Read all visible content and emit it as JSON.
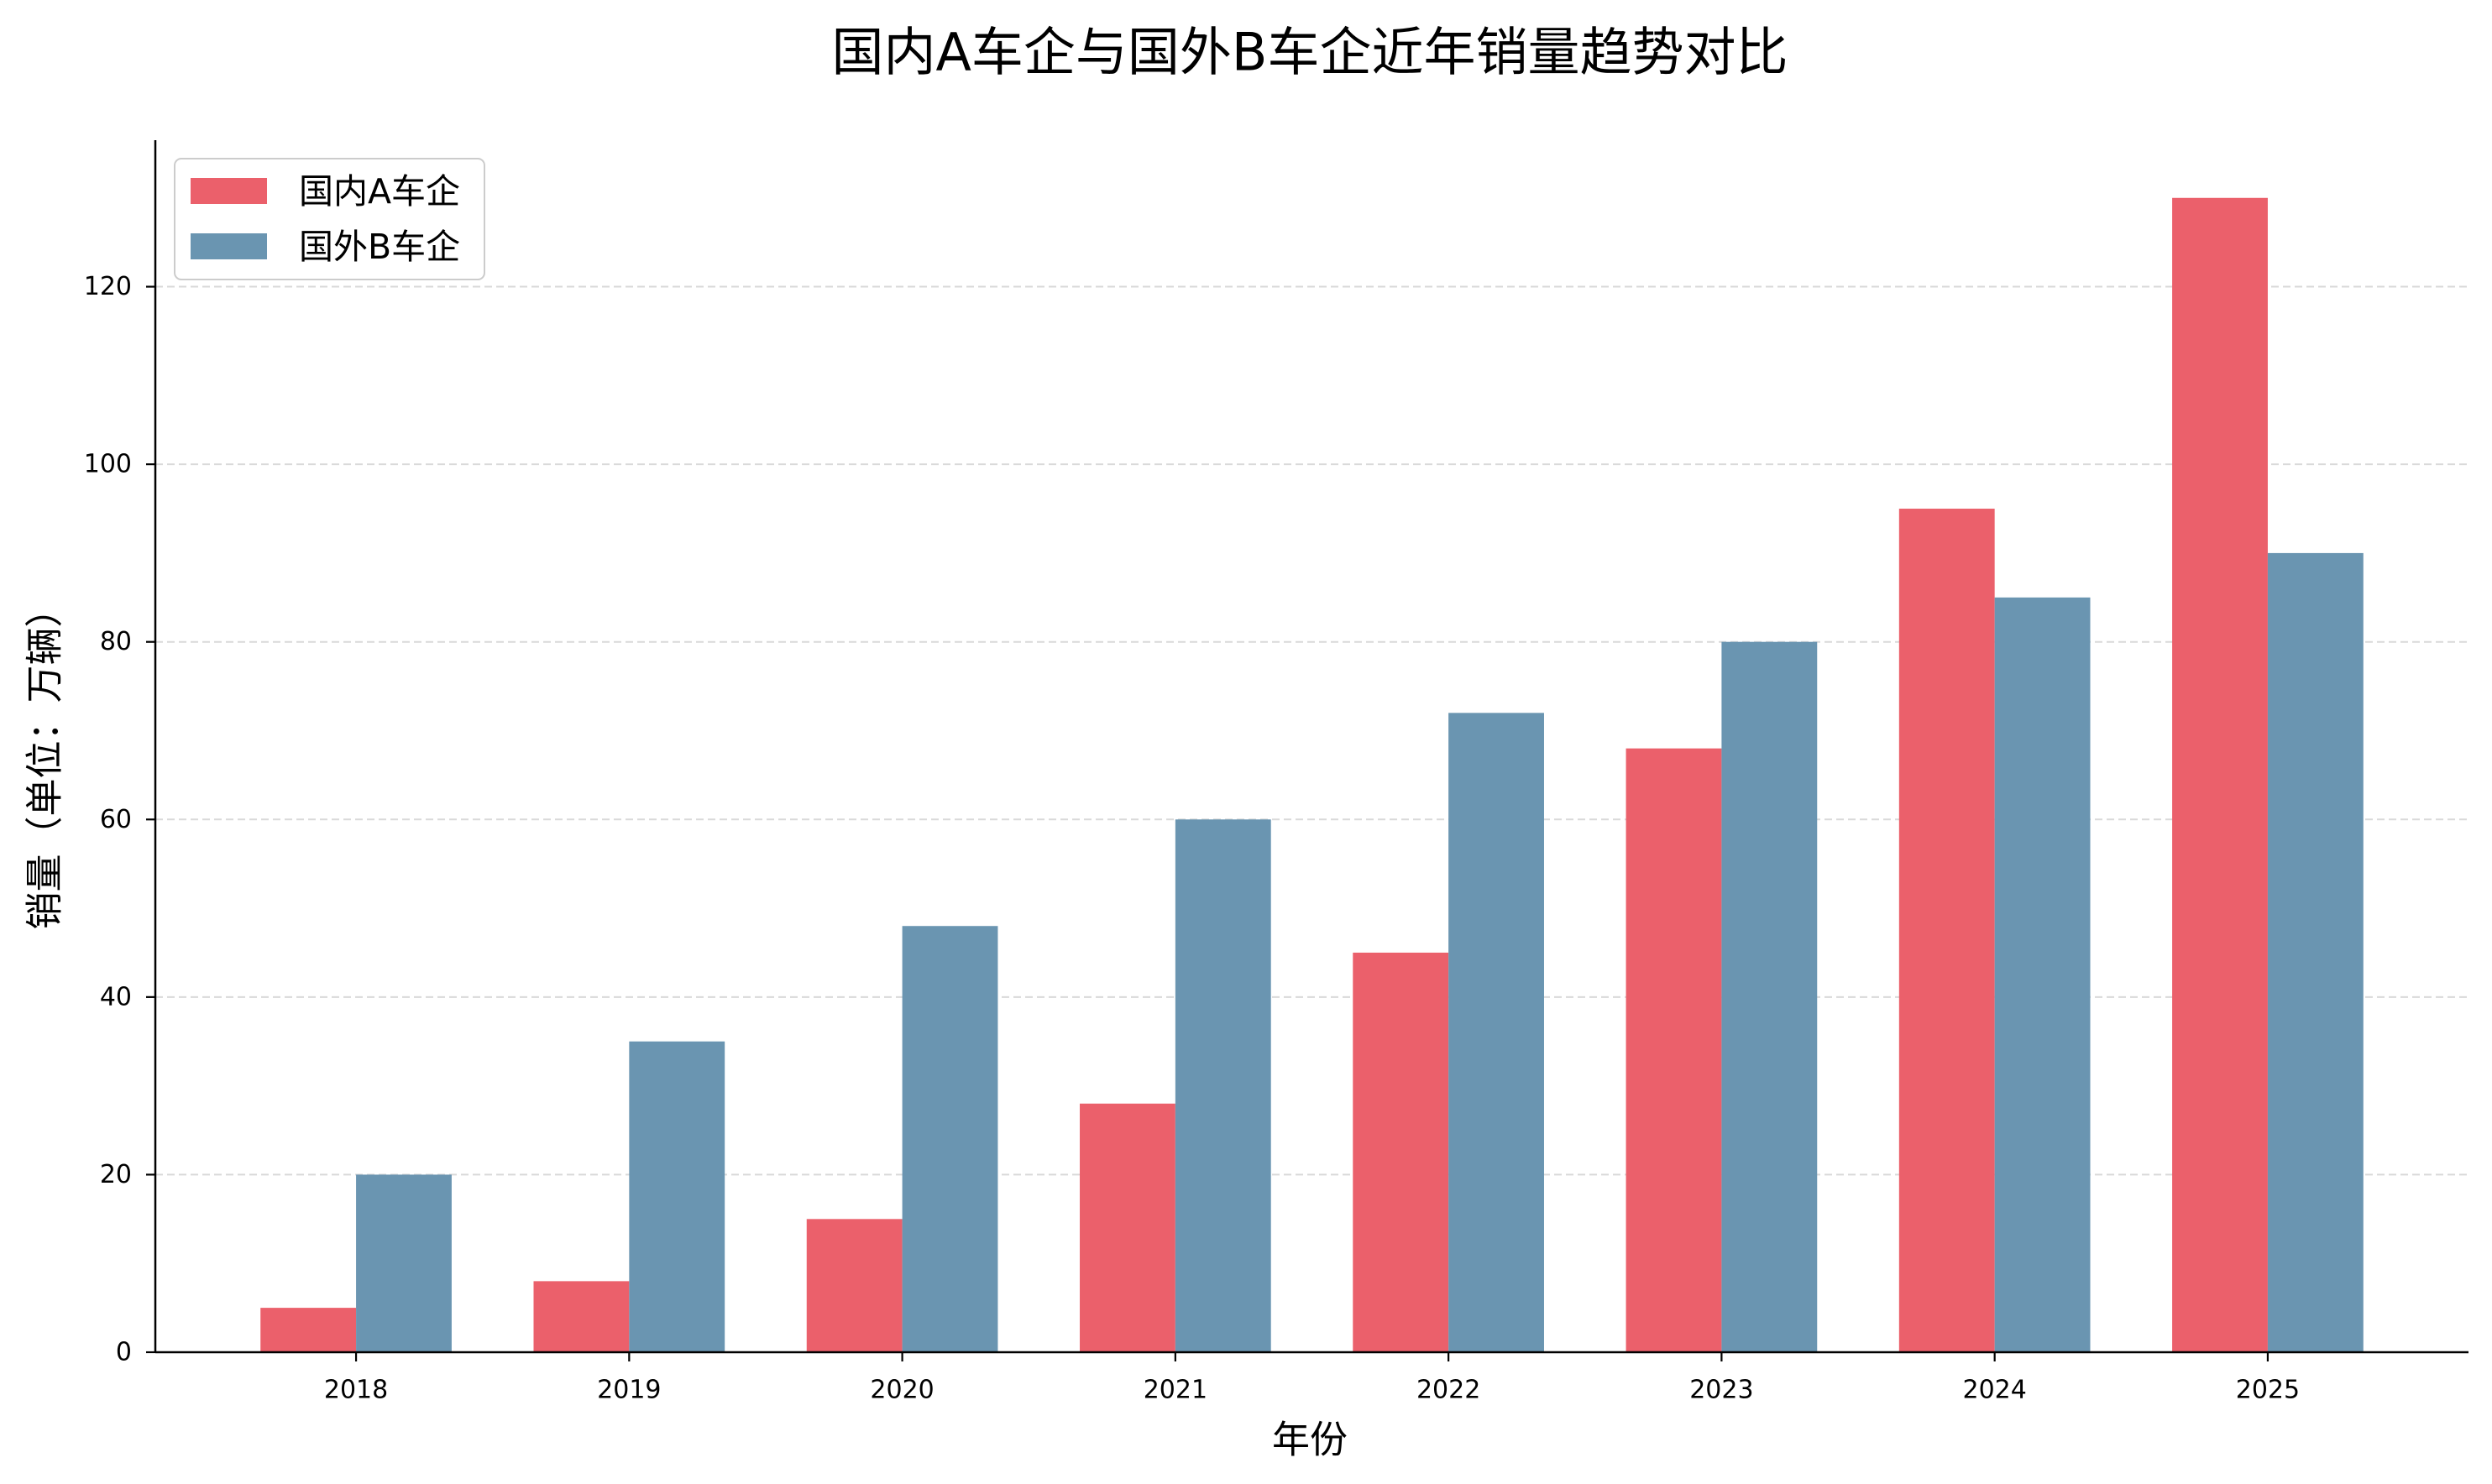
{
  "chart_data": {
    "type": "bar",
    "title": "国内A车企与国外B车企近年销量趋势对比",
    "xlabel": "年份",
    "ylabel": "销量（单位：万辆）",
    "categories": [
      "2018",
      "2019",
      "2020",
      "2021",
      "2022",
      "2023",
      "2024",
      "2025"
    ],
    "series": [
      {
        "name": "国内A车企",
        "color": "#EB606B",
        "values": [
          5,
          8,
          15,
          28,
          45,
          68,
          95,
          130
        ]
      },
      {
        "name": "国外B车企",
        "color": "#6A95B1",
        "values": [
          20,
          35,
          48,
          60,
          72,
          80,
          85,
          90
        ]
      }
    ],
    "ylim": [
      0,
      136.5
    ],
    "yticks": [
      0,
      20,
      40,
      60,
      80,
      100,
      120
    ],
    "grid": "horizontal dashed",
    "legend": "top-left"
  }
}
